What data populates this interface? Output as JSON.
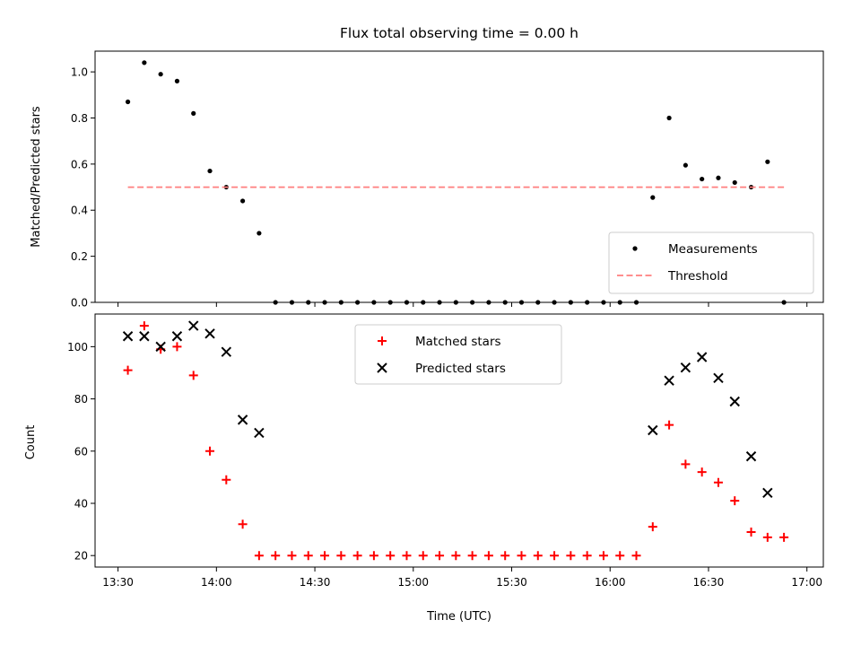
{
  "chart_data": [
    {
      "type": "scatter",
      "title": "Flux total observing time = 0.00 h",
      "ylabel": "Matched/Predicted stars",
      "xlabel": "",
      "ylim": [
        0,
        1.09
      ],
      "yticks": [
        "0.0",
        "0.2",
        "0.4",
        "0.6",
        "0.8",
        "1.0"
      ],
      "legend": "lower-right",
      "series": [
        {
          "name": "Measurements",
          "color": "#000000",
          "marker": "dot",
          "x": [
            "13:33",
            "13:38",
            "13:43",
            "13:48",
            "13:53",
            "13:58",
            "14:03",
            "14:08",
            "14:13",
            "14:18",
            "14:23",
            "14:28",
            "14:33",
            "14:38",
            "14:43",
            "14:48",
            "14:53",
            "14:58",
            "15:03",
            "15:08",
            "15:13",
            "15:18",
            "15:23",
            "15:28",
            "15:33",
            "15:38",
            "15:43",
            "15:48",
            "15:53",
            "15:58",
            "16:03",
            "16:08",
            "16:13",
            "16:18",
            "16:23",
            "16:28",
            "16:33",
            "16:38",
            "16:43",
            "16:48",
            "16:53"
          ],
          "y": [
            0.87,
            1.04,
            0.99,
            0.96,
            0.82,
            0.57,
            0.5,
            0.44,
            0.3,
            0,
            0,
            0,
            0,
            0,
            0,
            0,
            0,
            0,
            0,
            0,
            0,
            0,
            0,
            0,
            0,
            0,
            0,
            0,
            0,
            0,
            0,
            0,
            0.455,
            0.8,
            0.595,
            0.535,
            0.54,
            0.52,
            0.5,
            0.61,
            0
          ]
        },
        {
          "name": "Threshold",
          "color": "#ff7f7f",
          "style": "dashed",
          "x": [
            "13:33",
            "16:53"
          ],
          "y": [
            0.5,
            0.5
          ]
        }
      ]
    },
    {
      "type": "scatter",
      "title": "",
      "ylabel": "Count",
      "xlabel": "Time (UTC)",
      "ylim": [
        15.6,
        112.5
      ],
      "yticks": [
        "20",
        "40",
        "60",
        "80",
        "100"
      ],
      "xticks": [
        "13:30",
        "14:00",
        "14:30",
        "15:00",
        "15:30",
        "16:00",
        "16:30",
        "17:00"
      ],
      "legend": "top-center",
      "series": [
        {
          "name": "Matched stars",
          "color": "#ff0000",
          "marker": "plus",
          "x": [
            "13:33",
            "13:38",
            "13:43",
            "13:48",
            "13:53",
            "13:58",
            "14:03",
            "14:08",
            "14:13",
            "14:18",
            "14:23",
            "14:28",
            "14:33",
            "14:38",
            "14:43",
            "14:48",
            "14:53",
            "14:58",
            "15:03",
            "15:08",
            "15:13",
            "15:18",
            "15:23",
            "15:28",
            "15:33",
            "15:38",
            "15:43",
            "15:48",
            "15:53",
            "15:58",
            "16:03",
            "16:08",
            "16:13",
            "16:18",
            "16:23",
            "16:28",
            "16:33",
            "16:38",
            "16:43",
            "16:48",
            "16:53"
          ],
          "y": [
            91,
            108,
            99,
            100,
            89,
            60,
            49,
            32,
            20,
            20,
            20,
            20,
            20,
            20,
            20,
            20,
            20,
            20,
            20,
            20,
            20,
            20,
            20,
            20,
            20,
            20,
            20,
            20,
            20,
            20,
            20,
            20,
            31,
            70,
            55,
            52,
            48,
            41,
            29,
            27,
            27
          ]
        },
        {
          "name": "Predicted stars",
          "color": "#000000",
          "marker": "x",
          "x": [
            "13:33",
            "13:38",
            "13:43",
            "13:48",
            "13:53",
            "13:58",
            "14:03",
            "14:08",
            "14:13",
            "16:13",
            "16:18",
            "16:23",
            "16:28",
            "16:33",
            "16:38",
            "16:43",
            "16:48"
          ],
          "y": [
            104,
            104,
            100,
            104,
            108,
            105,
            98,
            72,
            67,
            68,
            87,
            92,
            96,
            88,
            79,
            58,
            44
          ]
        }
      ]
    }
  ]
}
